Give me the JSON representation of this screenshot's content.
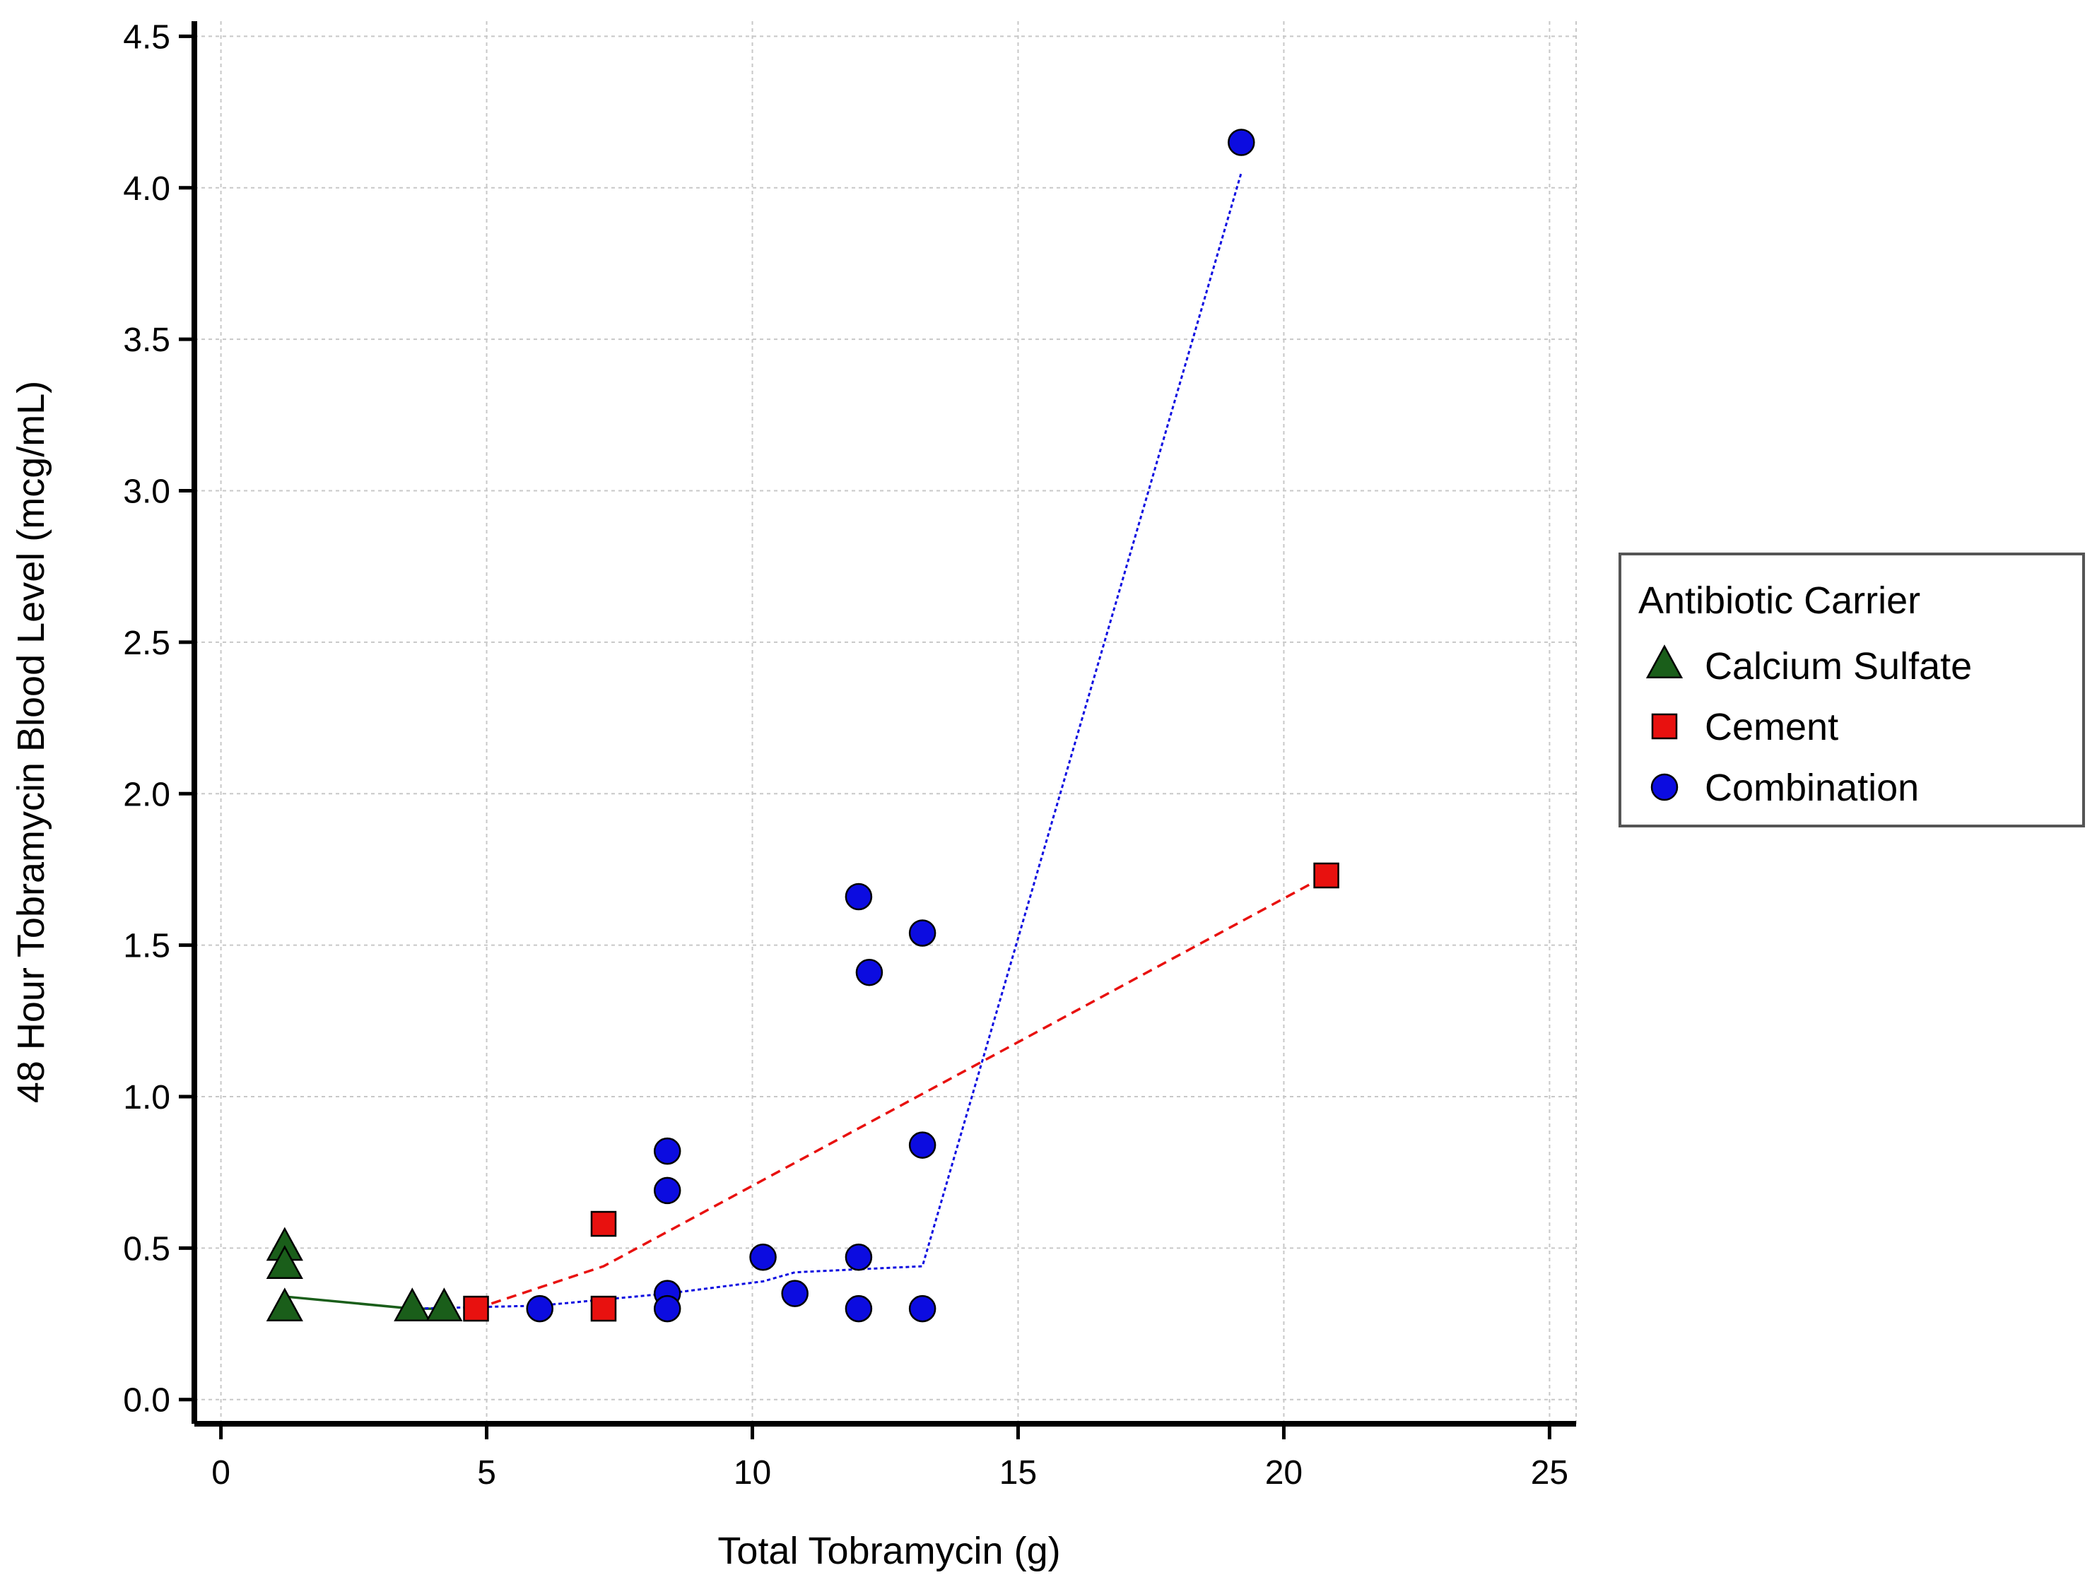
{
  "chart_data": {
    "type": "scatter",
    "title": "",
    "xlabel": "Total Tobramycin (g)",
    "ylabel": "48 Hour Tobramycin Blood Level (mcg/mL)",
    "xlim": [
      -0.5,
      25.5
    ],
    "ylim": [
      -0.08,
      4.55
    ],
    "xticks": [
      0,
      5,
      10,
      15,
      20,
      25
    ],
    "yticks": [
      0.0,
      0.5,
      1.0,
      1.5,
      2.0,
      2.5,
      3.0,
      3.5,
      4.0,
      4.5
    ],
    "ytick_labels": [
      "0.0",
      "0.5",
      "1.0",
      "1.5",
      "2.0",
      "2.5",
      "3.0",
      "3.5",
      "4.0",
      "4.5"
    ],
    "grid": true,
    "legend": {
      "title": "Antibiotic Carrier",
      "position": "right"
    },
    "series": [
      {
        "name": "Calcium Sulfate",
        "marker": "triangle",
        "color": "#1a5e1a",
        "line_style": "solid",
        "points": [
          [
            1.2,
            0.5
          ],
          [
            1.2,
            0.44
          ],
          [
            1.2,
            0.3
          ],
          [
            3.6,
            0.3
          ],
          [
            4.2,
            0.3
          ]
        ],
        "trend": [
          [
            1.2,
            0.34
          ],
          [
            3.6,
            0.3
          ],
          [
            4.2,
            0.3
          ]
        ]
      },
      {
        "name": "Cement",
        "marker": "square",
        "color": "#e8110f",
        "line_style": "dashed",
        "points": [
          [
            4.8,
            0.3
          ],
          [
            7.2,
            0.58
          ],
          [
            7.2,
            0.3
          ],
          [
            20.8,
            1.73
          ]
        ],
        "trend": [
          [
            4.8,
            0.3
          ],
          [
            7.2,
            0.44
          ],
          [
            20.8,
            1.73
          ]
        ]
      },
      {
        "name": "Combination",
        "marker": "circle",
        "color": "#0c0ce0",
        "line_style": "dotted",
        "points": [
          [
            6.0,
            0.3
          ],
          [
            8.4,
            0.82
          ],
          [
            8.4,
            0.69
          ],
          [
            8.4,
            0.35
          ],
          [
            8.4,
            0.3
          ],
          [
            10.2,
            0.47
          ],
          [
            10.8,
            0.35
          ],
          [
            12.0,
            1.66
          ],
          [
            12.0,
            0.47
          ],
          [
            12.0,
            0.3
          ],
          [
            12.2,
            1.41
          ],
          [
            13.2,
            1.54
          ],
          [
            13.2,
            0.84
          ],
          [
            13.2,
            0.3
          ],
          [
            19.2,
            4.15
          ]
        ],
        "trend": [
          [
            3.6,
            0.3
          ],
          [
            6.0,
            0.31
          ],
          [
            8.4,
            0.35
          ],
          [
            10.2,
            0.39
          ],
          [
            10.8,
            0.42
          ],
          [
            13.2,
            0.44
          ],
          [
            19.2,
            4.05
          ]
        ]
      }
    ]
  }
}
